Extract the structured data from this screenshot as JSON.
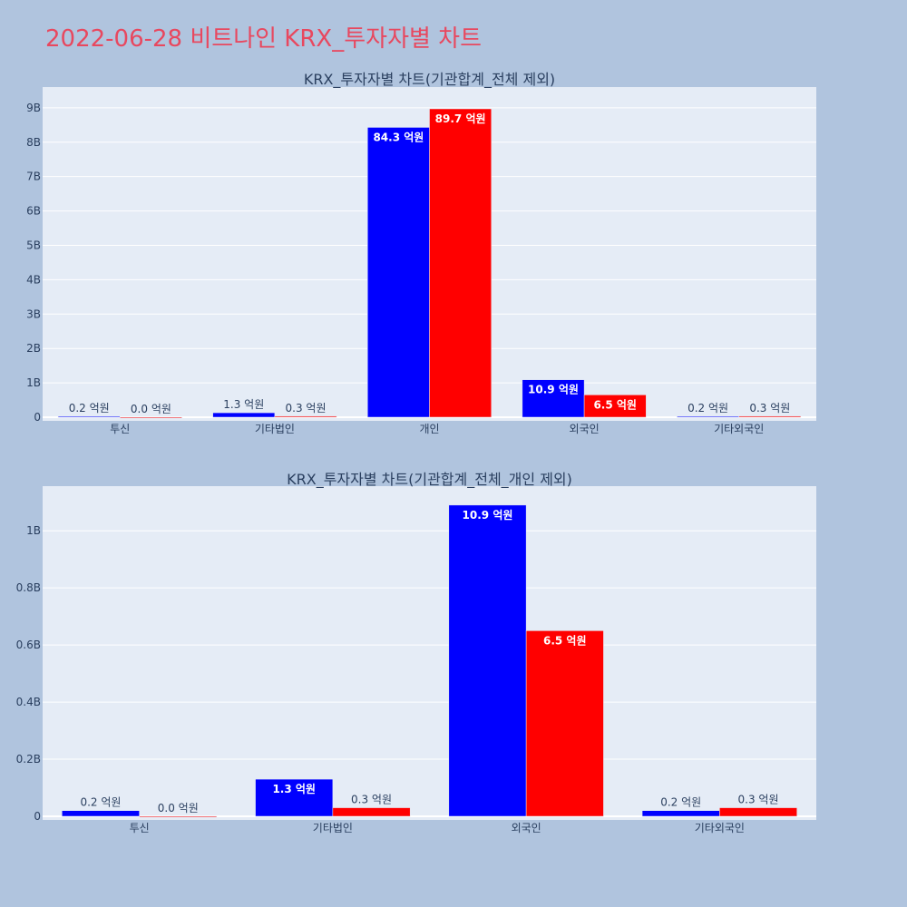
{
  "page": {
    "title": "2022-06-28 비트나인 KRX_투자자별 차트"
  },
  "colors": {
    "background": "#b0c4de",
    "plot_bg": "#e5ecf6",
    "title": "#e8485f",
    "series_blue": "#0000ff",
    "series_red": "#ff0000"
  },
  "chart_data": [
    {
      "type": "bar",
      "title": "KRX_투자자별 차트(기관합계_전체 제외)",
      "categories": [
        "투신",
        "기타법인",
        "개인",
        "외국인",
        "기타외국인"
      ],
      "ylim": [
        0,
        9.55
      ],
      "yunit": "B",
      "yticks": [
        0,
        1,
        2,
        3,
        4,
        5,
        6,
        7,
        8,
        9
      ],
      "ytick_labels": [
        "0",
        "1B",
        "2B",
        "3B",
        "4B",
        "5B",
        "6B",
        "7B",
        "8B",
        "9B"
      ],
      "grid": true,
      "series": [
        {
          "color": "#0000ff",
          "values": [
            0.02,
            0.13,
            8.43,
            1.09,
            0.02
          ],
          "labels": [
            "0.2 억원",
            "1.3 억원",
            "84.3 억원",
            "10.9 억원",
            "0.2 억원"
          ]
        },
        {
          "color": "#ff0000",
          "values": [
            0.0,
            0.03,
            8.97,
            0.65,
            0.03
          ],
          "labels": [
            "0.0 억원",
            "0.3 억원",
            "89.7 억원",
            "6.5 억원",
            "0.3 억원"
          ]
        }
      ]
    },
    {
      "type": "bar",
      "title": "KRX_투자자별 차트(기관합계_전체_개인 제외)",
      "categories": [
        "투신",
        "기타법인",
        "외국인",
        "기타외국인"
      ],
      "ylim": [
        0,
        1.15
      ],
      "yunit": "B",
      "yticks": [
        0,
        0.2,
        0.4,
        0.6,
        0.8,
        1.0
      ],
      "ytick_labels": [
        "0",
        "0.2B",
        "0.4B",
        "0.6B",
        "0.8B",
        "1B"
      ],
      "grid": true,
      "series": [
        {
          "color": "#0000ff",
          "values": [
            0.02,
            0.13,
            1.09,
            0.02
          ],
          "labels": [
            "0.2 억원",
            "1.3 억원",
            "10.9 억원",
            "0.2 억원"
          ]
        },
        {
          "color": "#ff0000",
          "values": [
            0.0,
            0.03,
            0.65,
            0.03
          ],
          "labels": [
            "0.0 억원",
            "0.3 억원",
            "6.5 억원",
            "0.3 억원"
          ]
        }
      ]
    }
  ]
}
